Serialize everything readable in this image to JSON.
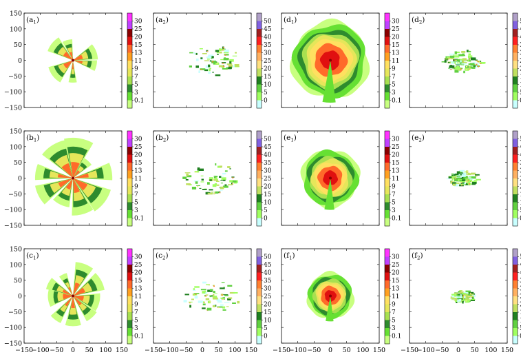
{
  "chart_data": {
    "type": "heatmap",
    "description_labels": "radar field maps, 3 rows x 4 columns",
    "axes": {
      "xlim": [
        -150,
        150
      ],
      "ylim": [
        -150,
        150
      ],
      "xticks": [
        "−150",
        "−100",
        "−50",
        "0",
        "50",
        "100",
        "150"
      ],
      "yticks": [
        "150",
        "100",
        "50",
        "0",
        "−50",
        "−100",
        "−150"
      ]
    },
    "scale_a": {
      "labels": [
        "30",
        "25",
        "20",
        "15",
        "13",
        "11",
        "9",
        "7",
        "5",
        "3",
        "0.1"
      ],
      "colors": [
        "#ff33ff",
        "#c040ff",
        "#8a0000",
        "#e01010",
        "#ff6a2a",
        "#ffa020",
        "#ffe060",
        "#e6e65a",
        "#a8e050",
        "#2e8b2e",
        "#66e033",
        "#c8ff80"
      ]
    },
    "scale_b": {
      "labels": [
        "50",
        "45",
        "40",
        "35",
        "30",
        "25",
        "20",
        "15",
        "10",
        "5",
        "0"
      ],
      "colors": [
        "#b0a0c8",
        "#8060e0",
        "#a02020",
        "#ff2020",
        "#ff8030",
        "#ffb060",
        "#ffe080",
        "#c0e060",
        "#208020",
        "#60d040",
        "#a0ff60",
        "#c8ffff"
      ]
    },
    "panels": [
      {
        "id": "a1",
        "label": "(a",
        "sub": "1",
        "scale": "a",
        "shape": "fan",
        "scale_factor": 1.0,
        "variant": 0
      },
      {
        "id": "a2",
        "label": "(a",
        "sub": "2",
        "scale": "b",
        "shape": "sparse",
        "scale_factor": 0.9,
        "variant": 0
      },
      {
        "id": "d1",
        "label": "(d",
        "sub": "1",
        "scale": "a",
        "shape": "disk",
        "scale_factor": 1.0,
        "variant": 0
      },
      {
        "id": "d2",
        "label": "(d",
        "sub": "2",
        "scale": "b",
        "shape": "cluster",
        "scale_factor": 1.0,
        "variant": 0
      },
      {
        "id": "b1",
        "label": "(b",
        "sub": "1",
        "scale": "a",
        "shape": "fan",
        "scale_factor": 1.0,
        "variant": 1
      },
      {
        "id": "b2",
        "label": "(b",
        "sub": "2",
        "scale": "b",
        "shape": "sparse",
        "scale_factor": 0.9,
        "variant": 1
      },
      {
        "id": "e1",
        "label": "(e",
        "sub": "1",
        "scale": "a",
        "shape": "disk",
        "scale_factor": 0.75,
        "variant": 1
      },
      {
        "id": "e2",
        "label": "(e",
        "sub": "2",
        "scale": "b",
        "shape": "cluster",
        "scale_factor": 0.75,
        "variant": 1
      },
      {
        "id": "c1",
        "label": "(c",
        "sub": "1",
        "scale": "a",
        "shape": "fan",
        "scale_factor": 1.0,
        "variant": 2
      },
      {
        "id": "c2",
        "label": "(c",
        "sub": "2",
        "scale": "b",
        "shape": "sparse",
        "scale_factor": 0.9,
        "variant": 2
      },
      {
        "id": "f1",
        "label": "(f",
        "sub": "1",
        "scale": "a",
        "shape": "disk",
        "scale_factor": 0.6,
        "variant": 2
      },
      {
        "id": "f2",
        "label": "(f",
        "sub": "2",
        "scale": "b",
        "shape": "cluster",
        "scale_factor": 0.55,
        "variant": 2
      }
    ]
  }
}
